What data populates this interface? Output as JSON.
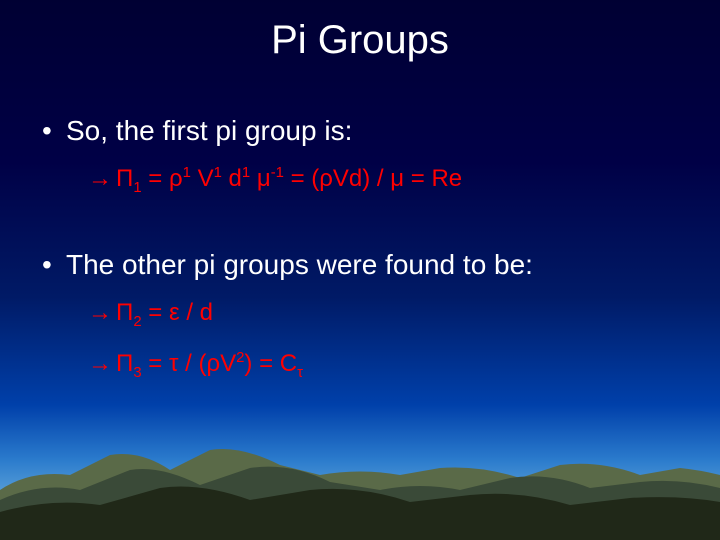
{
  "slide": {
    "title": "Pi Groups",
    "background": {
      "gradient_stops": [
        "#000033",
        "#000046",
        "#001a66",
        "#0040aa",
        "#2a7acc",
        "#5aa0d8",
        "#d8d0b8"
      ],
      "title_color": "#ffffff",
      "body_color": "#ffffff",
      "sub_bullet_color": "#ff0000",
      "mountain_colors": {
        "back": "#5a6a48",
        "mid": "#3a4a38",
        "front": "#202818"
      }
    },
    "title_fontsize": 40,
    "body_fontsize": 28,
    "sub_fontsize": 24,
    "bullets": [
      {
        "level": 1,
        "text": "So, the first pi group is:"
      },
      {
        "level": 2,
        "html": "Π<sub>1</sub> = ρ<sup>1</sup> V<sup>1</sup> d<sup>1</sup> μ<sup>-1</sup> = (ρVd) / μ = Re"
      },
      {
        "level": 1,
        "text": "The other pi groups were found to be:"
      },
      {
        "level": 2,
        "html": "Π<sub>2</sub> =  ε / d"
      },
      {
        "level": 2,
        "html": "Π<sub>3</sub> =  τ / (ρV<sup>2</sup>) = C<sub>τ</sub>"
      }
    ]
  }
}
